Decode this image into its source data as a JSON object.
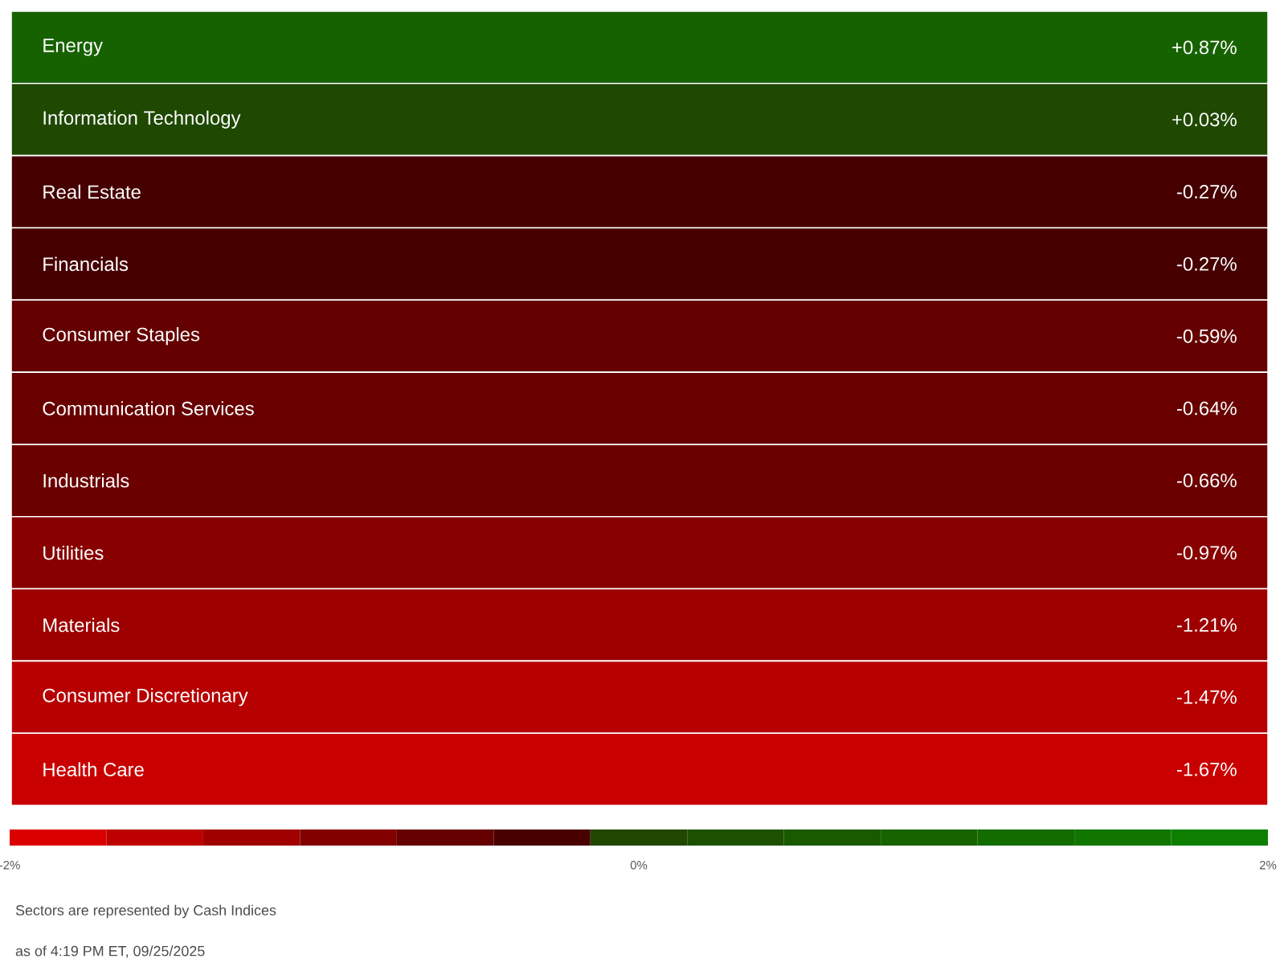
{
  "chart_data": {
    "type": "heatmap",
    "categories": [
      null
    ],
    "y_categories": [
      "Energy",
      "Information Technology",
      "Real Estate",
      "Financials",
      "Consumer Staples",
      "Communication Services",
      "Industrials",
      "Utilities",
      "Materials",
      "Consumer Discretionary",
      "Health Care"
    ],
    "cells": [
      [
        0.87
      ],
      [
        0.03
      ],
      [
        -0.27
      ],
      [
        -0.27
      ],
      [
        -0.59
      ],
      [
        -0.64
      ],
      [
        -0.66
      ],
      [
        -0.97
      ],
      [
        -1.21
      ],
      [
        -1.47
      ],
      [
        -1.67
      ]
    ],
    "cell_labels": [
      [
        "+0.87%"
      ],
      [
        "+0.03%"
      ],
      [
        "-0.27%"
      ],
      [
        "-0.27%"
      ],
      [
        "-0.59%"
      ],
      [
        "-0.64%"
      ],
      [
        "-0.66%"
      ],
      [
        "-0.97%"
      ],
      [
        "-1.21%"
      ],
      [
        "-1.47%"
      ],
      [
        "-1.67%"
      ]
    ],
    "clim": [
      -2,
      2
    ],
    "cticks": [
      {
        "value": -2,
        "label": "-2%"
      },
      {
        "value": 0,
        "label": "0%"
      },
      {
        "value": 2,
        "label": "2%"
      }
    ],
    "annotations": [
      "Sectors are represented by Cash Indices",
      "as of 4:19 PM ET, 09/25/2025"
    ]
  }
}
